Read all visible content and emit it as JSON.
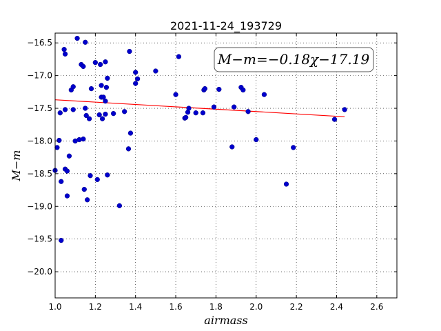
{
  "chart_data": {
    "type": "scatter",
    "title": "2021-11-24_193729",
    "xlabel": "airmass",
    "ylabel": "M−m",
    "xlim": [
      1.0,
      2.7
    ],
    "ylim": [
      -20.4,
      -16.35
    ],
    "y_inverted": true,
    "grid": true,
    "x_ticks": [
      1.0,
      1.2,
      1.4,
      1.6,
      1.8,
      2.0,
      2.2,
      2.4,
      2.6
    ],
    "x_tick_labels": [
      "1.0",
      "1.2",
      "1.4",
      "1.6",
      "1.8",
      "2.0",
      "2.2",
      "2.4",
      "2.6"
    ],
    "y_ticks": [
      -16.5,
      -17.0,
      -17.5,
      -18.0,
      -18.5,
      -19.0,
      -19.5,
      -20.0
    ],
    "y_tick_labels": [
      "−16.5",
      "−17.0",
      "−17.5",
      "−18.0",
      "−18.5",
      "−19.0",
      "−19.5",
      "−20.0"
    ],
    "annotation": "M−m=−0.18χ−17.19",
    "fit": {
      "slope": -0.18,
      "intercept": -17.19,
      "x_range": [
        1.0,
        2.44
      ],
      "color": "#ff0000"
    },
    "point_color": "#0000cc",
    "points": [
      [
        1.0,
        -18.45
      ],
      [
        1.01,
        -18.1
      ],
      [
        1.02,
        -17.99
      ],
      [
        1.025,
        -17.57
      ],
      [
        1.03,
        -19.52
      ],
      [
        1.03,
        -18.62
      ],
      [
        1.045,
        -16.6
      ],
      [
        1.05,
        -17.52
      ],
      [
        1.05,
        -16.67
      ],
      [
        1.05,
        -18.43
      ],
      [
        1.06,
        -18.46
      ],
      [
        1.06,
        -18.84
      ],
      [
        1.07,
        -18.23
      ],
      [
        1.08,
        -17.22
      ],
      [
        1.09,
        -17.17
      ],
      [
        1.09,
        -17.52
      ],
      [
        1.1,
        -18.0
      ],
      [
        1.11,
        -16.43
      ],
      [
        1.12,
        -17.98
      ],
      [
        1.13,
        -16.83
      ],
      [
        1.14,
        -16.86
      ],
      [
        1.14,
        -17.97
      ],
      [
        1.145,
        -18.74
      ],
      [
        1.15,
        -16.49
      ],
      [
        1.15,
        -17.5
      ],
      [
        1.155,
        -17.61
      ],
      [
        1.16,
        -18.9
      ],
      [
        1.17,
        -17.66
      ],
      [
        1.175,
        -18.53
      ],
      [
        1.18,
        -17.2
      ],
      [
        1.2,
        -16.8
      ],
      [
        1.21,
        -18.59
      ],
      [
        1.22,
        -17.6
      ],
      [
        1.225,
        -16.83
      ],
      [
        1.23,
        -17.33
      ],
      [
        1.23,
        -17.15
      ],
      [
        1.235,
        -17.66
      ],
      [
        1.24,
        -17.33
      ],
      [
        1.25,
        -17.39
      ],
      [
        1.25,
        -16.79
      ],
      [
        1.25,
        -17.59
      ],
      [
        1.255,
        -17.18
      ],
      [
        1.26,
        -17.04
      ],
      [
        1.26,
        -18.52
      ],
      [
        1.29,
        -17.58
      ],
      [
        1.32,
        -18.99
      ],
      [
        1.345,
        -17.55
      ],
      [
        1.365,
        -18.12
      ],
      [
        1.37,
        -16.63
      ],
      [
        1.375,
        -17.88
      ],
      [
        1.4,
        -17.12
      ],
      [
        1.4,
        -16.95
      ],
      [
        1.41,
        -17.05
      ],
      [
        1.5,
        -16.93
      ],
      [
        1.6,
        -17.29
      ],
      [
        1.615,
        -16.71
      ],
      [
        1.645,
        -17.65
      ],
      [
        1.65,
        -17.64
      ],
      [
        1.66,
        -17.56
      ],
      [
        1.665,
        -17.5
      ],
      [
        1.7,
        -17.57
      ],
      [
        1.735,
        -17.57
      ],
      [
        1.74,
        -17.22
      ],
      [
        1.745,
        -17.2
      ],
      [
        1.79,
        -17.48
      ],
      [
        1.815,
        -17.21
      ],
      [
        1.88,
        -18.09
      ],
      [
        1.89,
        -17.48
      ],
      [
        1.925,
        -17.18
      ],
      [
        1.935,
        -17.22
      ],
      [
        1.96,
        -17.55
      ],
      [
        2.0,
        -17.98
      ],
      [
        2.04,
        -17.29
      ],
      [
        2.15,
        -18.66
      ],
      [
        2.185,
        -18.1
      ],
      [
        2.39,
        -17.67
      ],
      [
        2.44,
        -17.52
      ]
    ]
  }
}
